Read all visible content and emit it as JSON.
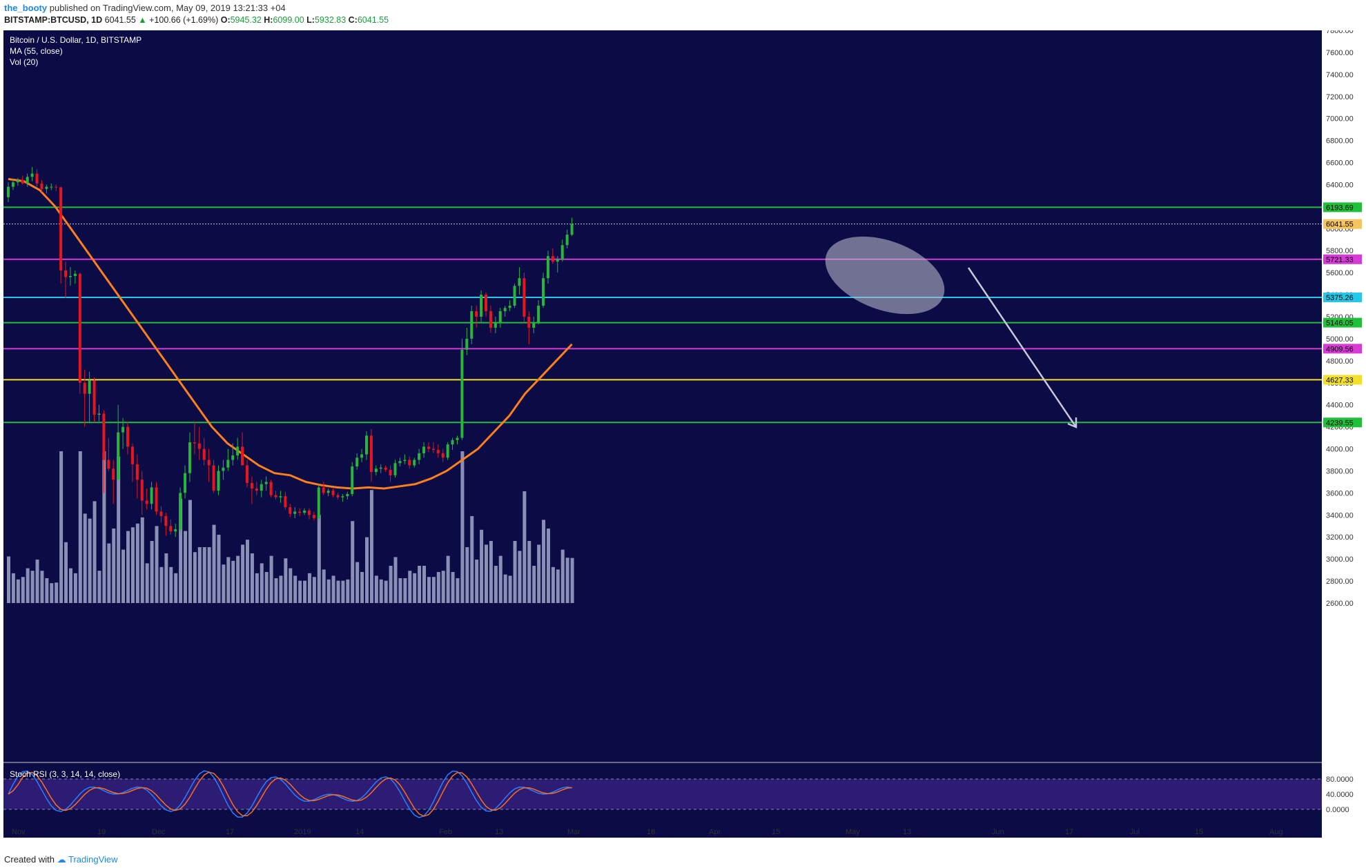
{
  "header": {
    "author": "the_booty",
    "published_text": "published on TradingView.com, May 09, 2019 13:21:33 +04",
    "symbol": "BITSTAMP:BTCUSD, 1D",
    "last": "6041.55",
    "change": "+100.66 (+1.69%)",
    "o_label": "O:",
    "o_value": "5945.32",
    "h_label": "H:",
    "h_value": "6099.00",
    "l_label": "L:",
    "l_value": "5932.83",
    "c_label": "C:",
    "c_value": "6041.55"
  },
  "legend": {
    "title": "Bitcoin / U.S. Dollar, 1D, BITSTAMP",
    "ma": "MA (55, close)",
    "vol": "Vol (20)",
    "stoch": "Stoch RSI (3, 3, 14, 14, close)"
  },
  "footer": {
    "created_with": "Created with",
    "brand": "TradingView"
  },
  "colors": {
    "background": "#0b0b45",
    "up": "#29b43a",
    "down": "#e8161c",
    "ma": "#ff7f1e",
    "volume": "#8a8fb6",
    "stoch_k": "#2a7fff",
    "stoch_d": "#ff6d1e",
    "stoch_band": "#2c1c74"
  },
  "chart_data": {
    "type": "candlestick",
    "title": "Bitcoin / U.S. Dollar, 1D, BITSTAMP",
    "ylim": [
      2600,
      7800
    ],
    "y_ticks": [
      "7800.00",
      "7600.00",
      "7400.00",
      "7200.00",
      "7000.00",
      "6800.00",
      "6600.00",
      "6400.00",
      "6200.00",
      "6000.00",
      "5800.00",
      "5600.00",
      "5400.00",
      "5200.00",
      "5000.00",
      "4800.00",
      "4600.00",
      "4400.00",
      "4200.00",
      "4000.00",
      "3800.00",
      "3600.00",
      "3400.00",
      "3200.00",
      "3000.00",
      "2800.00",
      "2600.00"
    ],
    "x_ticks": [
      "Nov",
      "19",
      "Dec",
      "17",
      "2019",
      "14",
      "Feb",
      "13",
      "Mar",
      "18",
      "Apr",
      "15",
      "May",
      "13",
      "Jun",
      "17",
      "Jul",
      "15",
      "Aug"
    ],
    "stoch_ticks": [
      "80.0000",
      "40.0000",
      "0.0000"
    ],
    "last_price": "6041.55",
    "levels": [
      {
        "value": 6193.69,
        "label": "6193.69",
        "color": "#21c03a"
      },
      {
        "value": 5721.33,
        "label": "5721.33",
        "color": "#d63bd6"
      },
      {
        "value": 5375.26,
        "label": "5375.26",
        "color": "#25c8e6"
      },
      {
        "value": 5146.05,
        "label": "5146.05",
        "color": "#21c03a"
      },
      {
        "value": 4909.56,
        "label": "4909.56",
        "color": "#d63bd6"
      },
      {
        "value": 4627.33,
        "label": "4627.33",
        "color": "#f2e02a"
      },
      {
        "value": 4239.55,
        "label": "4239.55",
        "color": "#21c03a"
      }
    ],
    "candles_ohlc": [
      [
        6285,
        6420,
        6240,
        6380
      ],
      [
        6380,
        6450,
        6350,
        6420
      ],
      [
        6420,
        6460,
        6390,
        6440
      ],
      [
        6440,
        6480,
        6400,
        6410
      ],
      [
        6410,
        6500,
        6380,
        6470
      ],
      [
        6470,
        6560,
        6430,
        6500
      ],
      [
        6500,
        6540,
        6380,
        6410
      ],
      [
        6410,
        6440,
        6330,
        6360
      ],
      [
        6360,
        6400,
        6320,
        6380
      ],
      [
        6380,
        6410,
        6350,
        6380
      ],
      [
        6380,
        6400,
        6340,
        6375
      ],
      [
        6375,
        6380,
        5500,
        5620
      ],
      [
        5620,
        5700,
        5370,
        5560
      ],
      [
        5560,
        5650,
        5480,
        5570
      ],
      [
        5570,
        5620,
        5500,
        5590
      ],
      [
        5590,
        5600,
        4500,
        4600
      ],
      [
        4600,
        4720,
        4200,
        4500
      ],
      [
        4500,
        4700,
        4240,
        4620
      ],
      [
        4620,
        4650,
        4240,
        4310
      ],
      [
        4310,
        4400,
        4250,
        4320
      ],
      [
        4320,
        4350,
        3600,
        3900
      ],
      [
        3900,
        4100,
        3800,
        3820
      ],
      [
        3820,
        3900,
        3500,
        3720
      ],
      [
        3720,
        4400,
        3750,
        4150
      ],
      [
        4150,
        4280,
        4000,
        4200
      ],
      [
        4200,
        4250,
        3950,
        4020
      ],
      [
        4020,
        4050,
        3700,
        3860
      ],
      [
        3860,
        3950,
        3550,
        3720
      ],
      [
        3720,
        3800,
        3400,
        3530
      ],
      [
        3530,
        3640,
        3450,
        3500
      ],
      [
        3500,
        3700,
        3450,
        3650
      ],
      [
        3650,
        3700,
        3400,
        3430
      ],
      [
        3430,
        3480,
        3330,
        3390
      ],
      [
        3390,
        3420,
        3210,
        3300
      ],
      [
        3300,
        3360,
        3220,
        3250
      ],
      [
        3250,
        3320,
        3200,
        3270
      ],
      [
        3270,
        3650,
        3240,
        3600
      ],
      [
        3600,
        3850,
        3550,
        3780
      ],
      [
        3780,
        4150,
        3700,
        4060
      ],
      [
        4060,
        4250,
        3950,
        4050
      ],
      [
        4050,
        4200,
        3900,
        4000
      ],
      [
        4000,
        4100,
        3850,
        3900
      ],
      [
        3900,
        4000,
        3700,
        3850
      ],
      [
        3850,
        3900,
        3600,
        3620
      ],
      [
        3620,
        3850,
        3580,
        3800
      ],
      [
        3800,
        3900,
        3720,
        3830
      ],
      [
        3830,
        4000,
        3800,
        3900
      ],
      [
        3900,
        4050,
        3850,
        3940
      ],
      [
        3940,
        4100,
        3900,
        4020
      ],
      [
        4020,
        4150,
        3950,
        3850
      ],
      [
        3850,
        3900,
        3650,
        3690
      ],
      [
        3690,
        3750,
        3500,
        3640
      ],
      [
        3640,
        3700,
        3580,
        3620
      ],
      [
        3620,
        3720,
        3560,
        3680
      ],
      [
        3680,
        3750,
        3620,
        3700
      ],
      [
        3700,
        3720,
        3560,
        3580
      ],
      [
        3580,
        3620,
        3540,
        3560
      ],
      [
        3560,
        3620,
        3510,
        3570
      ],
      [
        3570,
        3610,
        3450,
        3470
      ],
      [
        3470,
        3500,
        3380,
        3410
      ],
      [
        3410,
        3470,
        3370,
        3430
      ],
      [
        3430,
        3460,
        3390,
        3420
      ],
      [
        3420,
        3460,
        3400,
        3440
      ],
      [
        3440,
        3460,
        3360,
        3400
      ],
      [
        3400,
        3430,
        3350,
        3370
      ],
      [
        3370,
        3680,
        3350,
        3650
      ],
      [
        3650,
        3700,
        3580,
        3600
      ],
      [
        3600,
        3640,
        3570,
        3620
      ],
      [
        3620,
        3640,
        3560,
        3580
      ],
      [
        3580,
        3600,
        3540,
        3560
      ],
      [
        3560,
        3590,
        3520,
        3570
      ],
      [
        3570,
        3610,
        3540,
        3590
      ],
      [
        3590,
        3880,
        3570,
        3840
      ],
      [
        3840,
        3960,
        3810,
        3920
      ],
      [
        3920,
        4000,
        3880,
        3950
      ],
      [
        3950,
        4160,
        3900,
        4120
      ],
      [
        4120,
        4180,
        3700,
        3790
      ],
      [
        3790,
        3850,
        3760,
        3820
      ],
      [
        3820,
        3860,
        3780,
        3830
      ],
      [
        3830,
        3850,
        3790,
        3810
      ],
      [
        3810,
        3850,
        3700,
        3760
      ],
      [
        3760,
        3900,
        3740,
        3870
      ],
      [
        3870,
        3920,
        3840,
        3890
      ],
      [
        3890,
        3950,
        3860,
        3900
      ],
      [
        3900,
        3930,
        3820,
        3850
      ],
      [
        3850,
        3920,
        3830,
        3900
      ],
      [
        3900,
        4000,
        3860,
        3960
      ],
      [
        3960,
        4060,
        3920,
        4020
      ],
      [
        4020,
        4060,
        3970,
        4000
      ],
      [
        4000,
        4060,
        3960,
        3990
      ],
      [
        3990,
        4040,
        3920,
        3960
      ],
      [
        3960,
        4000,
        3880,
        3920
      ],
      [
        3920,
        4060,
        3900,
        4040
      ],
      [
        4040,
        4100,
        3990,
        4080
      ],
      [
        4080,
        4120,
        4040,
        4100
      ],
      [
        4100,
        5000,
        4080,
        4900
      ],
      [
        4900,
        5100,
        4850,
        5000
      ],
      [
        5000,
        5300,
        4950,
        5250
      ],
      [
        5250,
        5300,
        5100,
        5200
      ],
      [
        5200,
        5440,
        5150,
        5400
      ],
      [
        5400,
        5420,
        5200,
        5250
      ],
      [
        5250,
        5300,
        5050,
        5100
      ],
      [
        5100,
        5200,
        5050,
        5150
      ],
      [
        5150,
        5280,
        5100,
        5250
      ],
      [
        5250,
        5300,
        5200,
        5280
      ],
      [
        5280,
        5350,
        5250,
        5300
      ],
      [
        5300,
        5500,
        5280,
        5480
      ],
      [
        5480,
        5650,
        5400,
        5550
      ],
      [
        5550,
        5600,
        5150,
        5200
      ],
      [
        5200,
        5250,
        4950,
        5100
      ],
      [
        5100,
        5200,
        5050,
        5150
      ],
      [
        5150,
        5350,
        5130,
        5300
      ],
      [
        5300,
        5600,
        5280,
        5550
      ],
      [
        5550,
        5800,
        5500,
        5750
      ],
      [
        5750,
        5820,
        5680,
        5700
      ],
      [
        5700,
        5750,
        5600,
        5720
      ],
      [
        5720,
        5900,
        5700,
        5850
      ],
      [
        5850,
        5990,
        5820,
        5945
      ],
      [
        5945,
        6099,
        5932,
        6041
      ]
    ],
    "ma55": [
      6450,
      6430,
      6350,
      6200,
      6000,
      5800,
      5600,
      5400,
      5200,
      5000,
      4800,
      4600,
      4400,
      4200,
      4050,
      3950,
      3850,
      3780,
      3760,
      3700,
      3670,
      3650,
      3640,
      3650,
      3640,
      3660,
      3680,
      3730,
      3800,
      3900,
      4000,
      4150,
      4300,
      4500,
      4650,
      4800,
      4950
    ]
  }
}
